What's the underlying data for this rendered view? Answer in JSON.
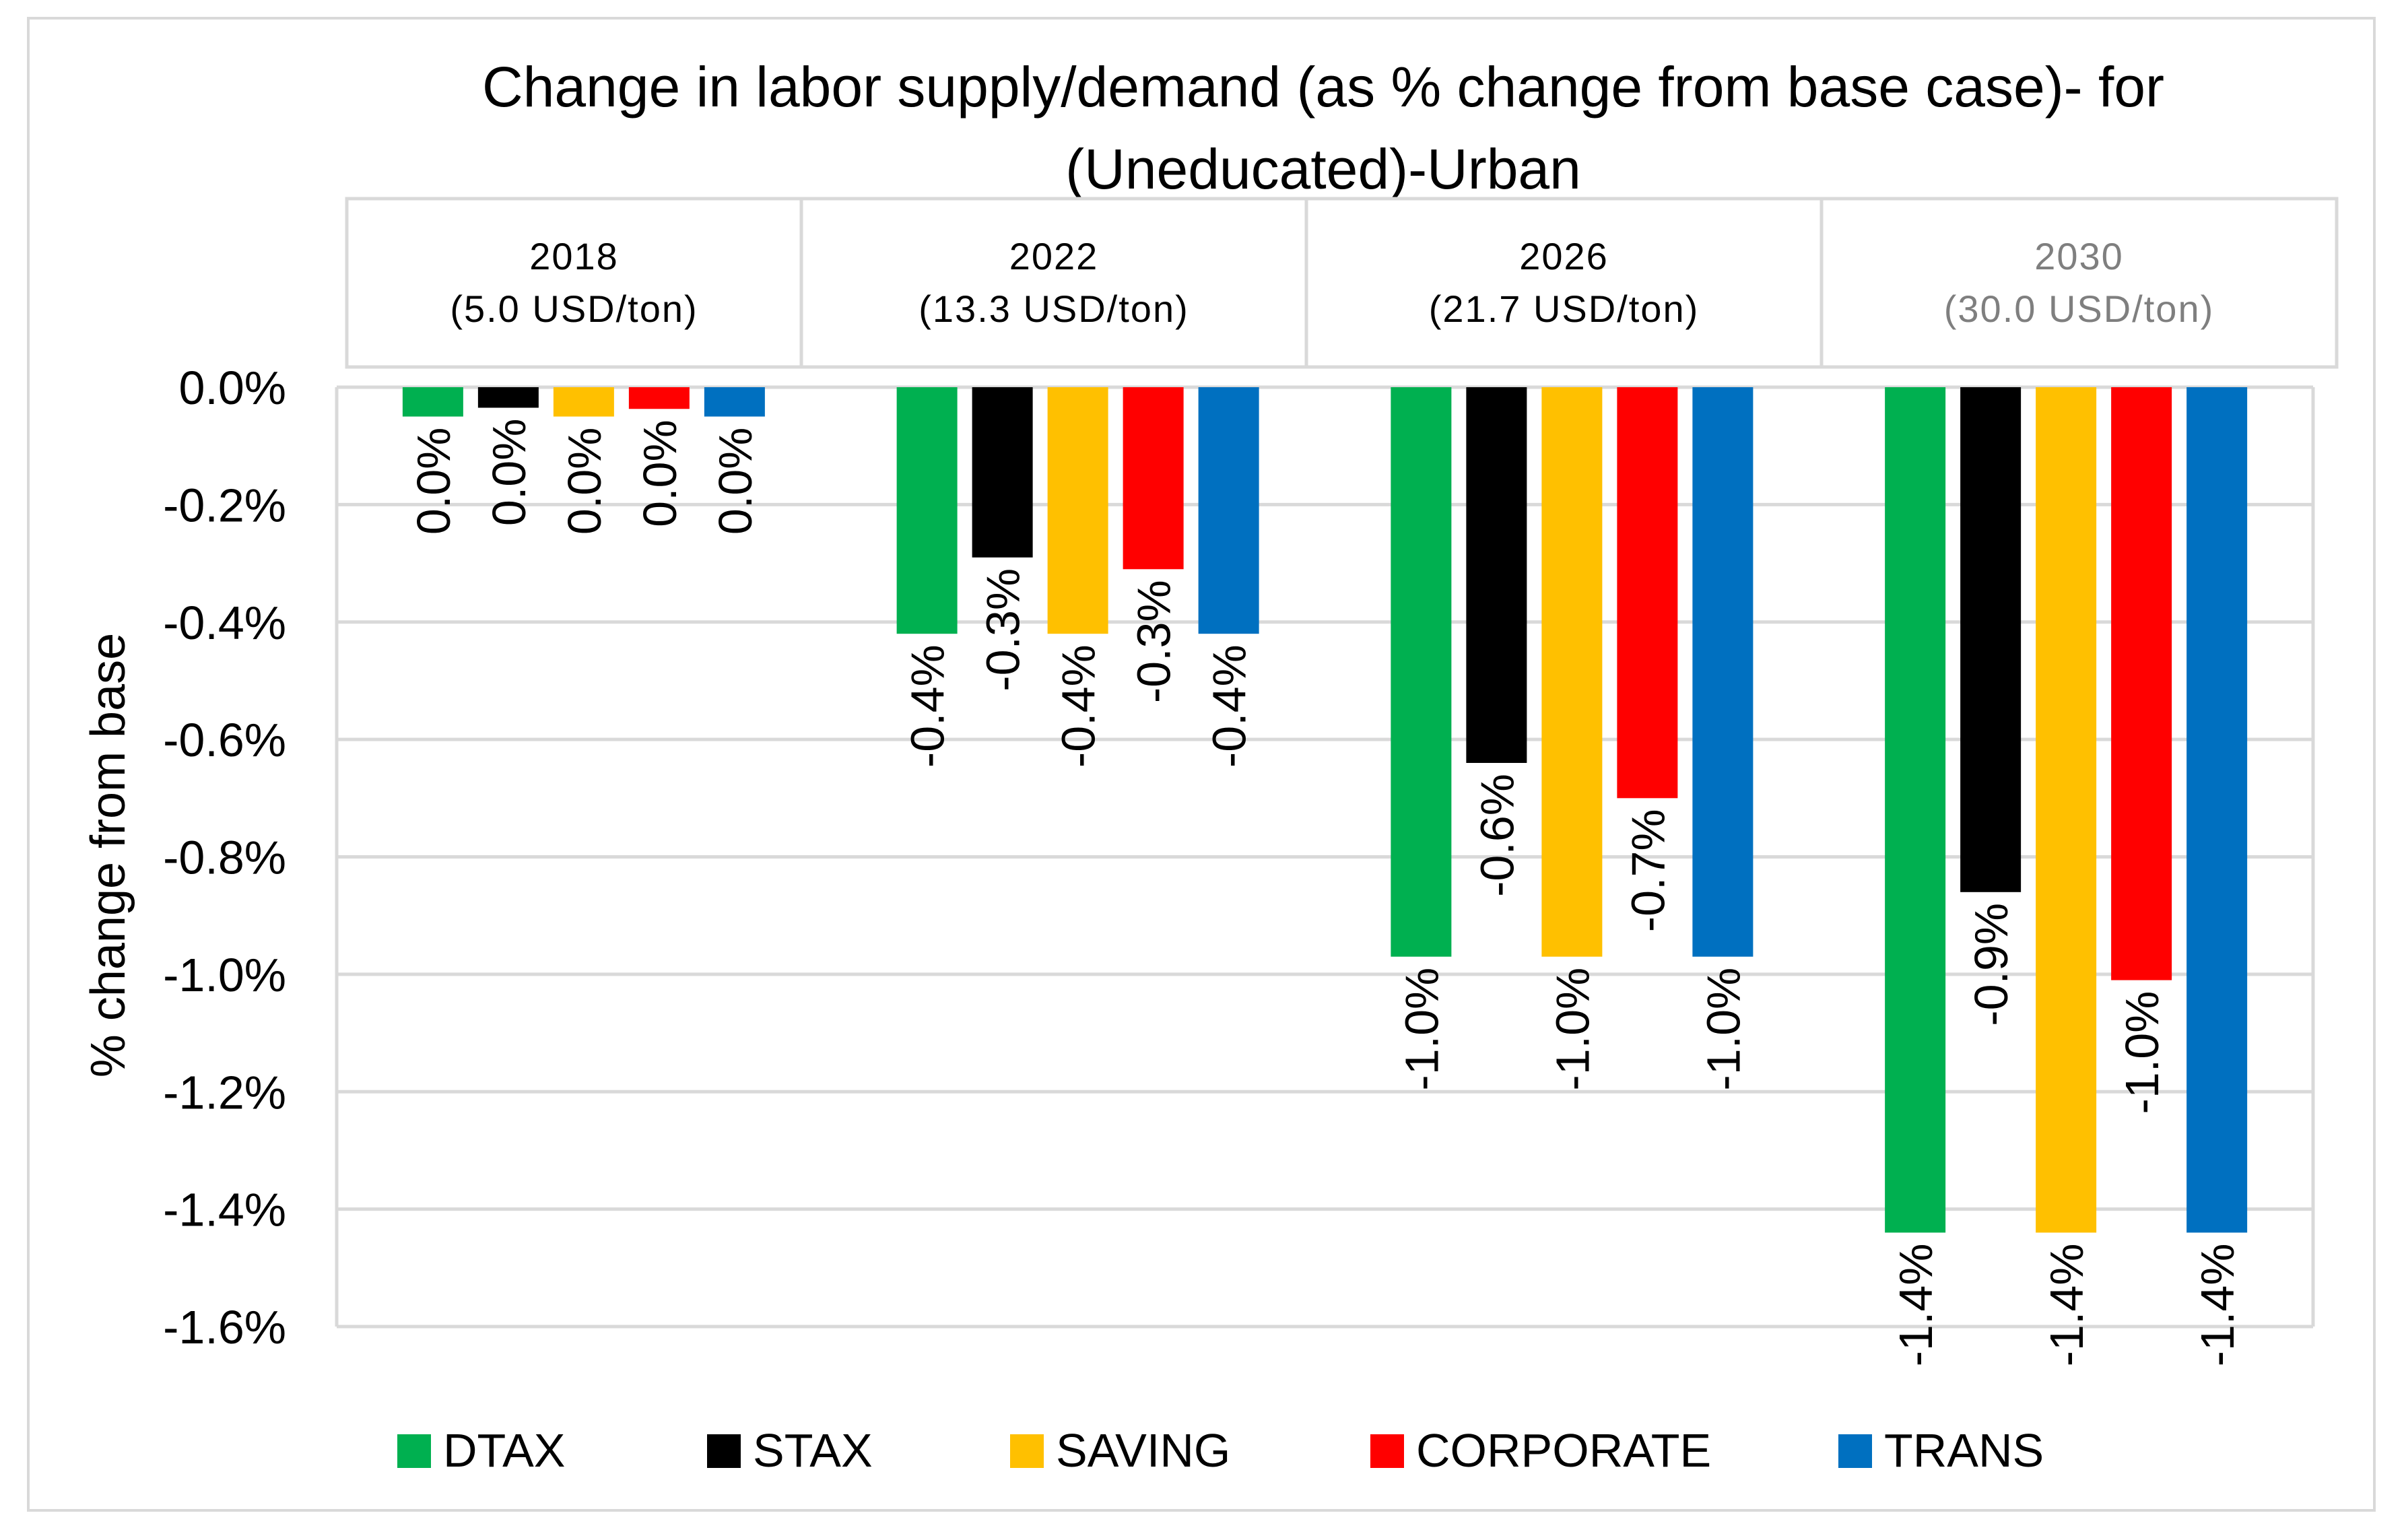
{
  "chart_data": {
    "type": "bar",
    "title": "Change in labor supply/demand (as % change from base case)- for (Uneducated)-Urban",
    "title_lines": [
      "Change in labor supply/demand (as % change from base case)- for",
      "(Uneducated)-Urban"
    ],
    "ylabel": "% change from base",
    "xlabel": "",
    "ylim": [
      -1.6,
      0.0
    ],
    "yticks": [
      "0.0%",
      "-0.2%",
      "-0.4%",
      "-0.6%",
      "-0.8%",
      "-1.0%",
      "-1.2%",
      "-1.4%",
      "-1.6%"
    ],
    "ytick_values": [
      0.0,
      -0.2,
      -0.4,
      -0.6,
      -0.8,
      -1.0,
      -1.2,
      -1.4,
      -1.6
    ],
    "grid": true,
    "legend_position": "bottom",
    "categories": [
      {
        "year": "2018",
        "price": "(5.0 USD/ton)"
      },
      {
        "year": "2022",
        "price": "(13.3 USD/ton)"
      },
      {
        "year": "2026",
        "price": "(21.7 USD/ton)"
      },
      {
        "year": "2030",
        "price": "(30.0 USD/ton)"
      }
    ],
    "series": [
      {
        "name": "DTAX",
        "color": "#00b050",
        "values": [
          -0.05,
          -0.42,
          -0.97,
          -1.44
        ],
        "labels": [
          "0.0%",
          "-0.4%",
          "-1.0%",
          "-1.4%"
        ]
      },
      {
        "name": "STAX",
        "color": "#000000",
        "values": [
          -0.035,
          -0.29,
          -0.64,
          -0.86
        ],
        "labels": [
          "0.0%",
          "-0.3%",
          "-0.6%",
          "-0.9%"
        ]
      },
      {
        "name": "SAVING",
        "color": "#ffc000",
        "values": [
          -0.05,
          -0.42,
          -0.97,
          -1.44
        ],
        "labels": [
          "0.0%",
          "-0.4%",
          "-1.0%",
          "-1.4%"
        ]
      },
      {
        "name": "CORPORATE",
        "color": "#ff0000",
        "values": [
          -0.037,
          -0.31,
          -0.7,
          -1.01
        ],
        "labels": [
          "0.0%",
          "-0.3%",
          "-0.7%",
          "-1.0%"
        ]
      },
      {
        "name": "TRANS",
        "color": "#0070c0",
        "values": [
          -0.05,
          -0.42,
          -0.97,
          -1.44
        ],
        "labels": [
          "0.0%",
          "-0.4%",
          "-1.0%",
          "-1.4%"
        ]
      }
    ],
    "colors": {
      "grid": "#d9d9d9",
      "text": "#000000",
      "category_muted": "#7f7f7f"
    }
  }
}
